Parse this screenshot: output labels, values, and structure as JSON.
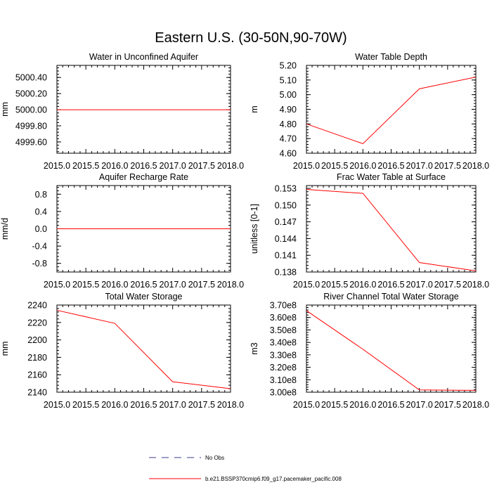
{
  "title": "Eastern U.S. (30-50N,90-70W)",
  "chart_data": [
    {
      "type": "line",
      "title": "Water in Unconfined Aquifer",
      "xlabel": "",
      "ylabel": "mm",
      "xlim": [
        2015.0,
        2018.0
      ],
      "xticks": [
        2015.0,
        2015.5,
        2016.0,
        2016.5,
        2017.0,
        2017.5,
        2018.0
      ],
      "xtick_labels": [
        "2015.0",
        "2015.5",
        "2016.0",
        "2016.5",
        "2017.0",
        "2017.5",
        "2018.0"
      ],
      "ylim": [
        4999.46,
        5000.55
      ],
      "yticks": [
        4999.6,
        4999.8,
        5000.0,
        5000.2,
        5000.4
      ],
      "ytick_labels": [
        "4999.60",
        "4999.80",
        "5000.00",
        "5000.20",
        "5000.40"
      ],
      "x": [
        2015.0,
        2016.0,
        2017.0,
        2018.0
      ],
      "values": [
        5000.0,
        5000.0,
        5000.0,
        5000.0
      ]
    },
    {
      "type": "line",
      "title": "Water Table Depth",
      "xlabel": "",
      "ylabel": "m",
      "xlim": [
        2015.0,
        2018.0
      ],
      "xticks": [
        2015.0,
        2015.5,
        2016.0,
        2016.5,
        2017.0,
        2017.5,
        2018.0
      ],
      "xtick_labels": [
        "2015.0",
        "2015.5",
        "2016.0",
        "2016.5",
        "2017.0",
        "2017.5",
        "2018.0"
      ],
      "ylim": [
        4.6,
        5.2
      ],
      "yticks": [
        4.6,
        4.7,
        4.8,
        4.9,
        5.0,
        5.1,
        5.2
      ],
      "ytick_labels": [
        "4.60",
        "4.70",
        "4.80",
        "4.90",
        "5.00",
        "5.10",
        "5.20"
      ],
      "x": [
        2015.0,
        2016.0,
        2017.0,
        2018.0
      ],
      "values": [
        4.8,
        4.665,
        5.04,
        5.12
      ]
    },
    {
      "type": "line",
      "title": "Aquifer Recharge Rate",
      "xlabel": "",
      "ylabel": "mm/d",
      "xlim": [
        2015.0,
        2018.0
      ],
      "xticks": [
        2015.0,
        2015.5,
        2016.0,
        2016.5,
        2017.0,
        2017.5,
        2018.0
      ],
      "xtick_labels": [
        "2015.0",
        "2015.5",
        "2016.0",
        "2016.5",
        "2017.0",
        "2017.5",
        "2018.0"
      ],
      "ylim": [
        -1.0,
        1.0
      ],
      "yticks": [
        -0.8,
        -0.4,
        0.0,
        0.4,
        0.8
      ],
      "ytick_labels": [
        "-0.8",
        "-0.4",
        "0.0",
        "0.4",
        "0.8"
      ],
      "x": [
        2015.0,
        2016.0,
        2017.0,
        2018.0
      ],
      "values": [
        0.0,
        0.0,
        0.0,
        0.0
      ]
    },
    {
      "type": "line",
      "title": "Frac Water Table at Surface",
      "xlabel": "",
      "ylabel": "unitless [0-1]",
      "xlim": [
        2015.0,
        2018.0
      ],
      "xticks": [
        2015.0,
        2015.5,
        2016.0,
        2016.5,
        2017.0,
        2017.5,
        2018.0
      ],
      "xtick_labels": [
        "2015.0",
        "2015.5",
        "2016.0",
        "2016.5",
        "2017.0",
        "2017.5",
        "2018.0"
      ],
      "ylim": [
        0.138,
        0.1535
      ],
      "yticks": [
        0.138,
        0.141,
        0.144,
        0.147,
        0.15,
        0.153
      ],
      "ytick_labels": [
        "0.138",
        "0.141",
        "0.144",
        "0.147",
        "0.150",
        "0.153"
      ],
      "x": [
        2015.0,
        2016.0,
        2017.0,
        2018.0
      ],
      "values": [
        0.1528,
        0.1521,
        0.1397,
        0.1382
      ]
    },
    {
      "type": "line",
      "title": "Total Water Storage",
      "xlabel": "",
      "ylabel": "mm",
      "xlim": [
        2015.0,
        2018.0
      ],
      "xticks": [
        2015.0,
        2015.5,
        2016.0,
        2016.5,
        2017.0,
        2017.5,
        2018.0
      ],
      "xtick_labels": [
        "2015.0",
        "2015.5",
        "2016.0",
        "2016.5",
        "2017.0",
        "2017.5",
        "2018.0"
      ],
      "ylim": [
        2140,
        2240
      ],
      "yticks": [
        2140,
        2160,
        2180,
        2200,
        2220,
        2240
      ],
      "ytick_labels": [
        "2140",
        "2160",
        "2180",
        "2200",
        "2220",
        "2240"
      ],
      "x": [
        2015.0,
        2016.0,
        2017.0,
        2018.0
      ],
      "values": [
        2234,
        2219,
        2152,
        2144
      ]
    },
    {
      "type": "line",
      "title": "River Channel Total Water Storage",
      "xlabel": "",
      "ylabel": "m3",
      "xlim": [
        2015.0,
        2018.0
      ],
      "xticks": [
        2015.0,
        2015.5,
        2016.0,
        2016.5,
        2017.0,
        2017.5,
        2018.0
      ],
      "xtick_labels": [
        "2015.0",
        "2015.5",
        "2016.0",
        "2016.5",
        "2017.0",
        "2017.5",
        "2018.0"
      ],
      "ylim": [
        300000000.0,
        370000000.0
      ],
      "yticks": [
        300000000.0,
        310000000.0,
        320000000.0,
        330000000.0,
        340000000.0,
        350000000.0,
        360000000.0,
        370000000.0
      ],
      "ytick_labels": [
        "3.00e8",
        "3.10e8",
        "3.20e8",
        "3.30e8",
        "3.40e8",
        "3.50e8",
        "3.60e8",
        "3.70e8"
      ],
      "x": [
        2015.0,
        2016.0,
        2017.0,
        2018.0
      ],
      "values": [
        365500000.0,
        334500000.0,
        301800000.0,
        301500000.0
      ]
    }
  ],
  "legend": {
    "entries": [
      {
        "label": "No Obs",
        "style": "dashed",
        "color": "#3b3b8f"
      },
      {
        "label": "b.e21.BSSP370cmip6.f09_g17.pacemaker_pacific.008",
        "style": "solid",
        "color": "#ff0000"
      }
    ]
  },
  "colors": {
    "series": "#ff0000",
    "axis": "#000000"
  }
}
